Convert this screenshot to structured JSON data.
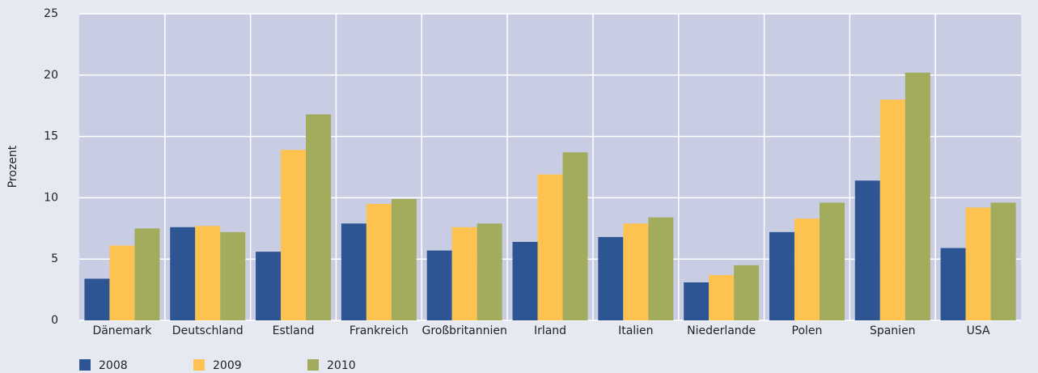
{
  "chart_data": {
    "type": "bar",
    "y_label": "Prozent",
    "categories": [
      "Dänemark",
      "Deutschland",
      "Estland",
      "Frankreich",
      "Großbritannien",
      "Irland",
      "Italien",
      "Niederlande",
      "Polen",
      "Spanien",
      "USA"
    ],
    "series": [
      {
        "name": "2008",
        "color": "#2e5593",
        "values": [
          3.4,
          7.6,
          5.6,
          7.9,
          5.7,
          6.4,
          6.8,
          3.1,
          7.2,
          11.4,
          5.9
        ]
      },
      {
        "name": "2009",
        "color": "#fdc24f",
        "values": [
          6.1,
          7.7,
          13.9,
          9.5,
          7.6,
          11.9,
          7.9,
          3.7,
          8.3,
          18.0,
          9.2
        ]
      },
      {
        "name": "2010",
        "color": "#a3ab5c",
        "values": [
          7.5,
          7.2,
          16.8,
          9.9,
          7.9,
          13.7,
          8.4,
          4.5,
          9.6,
          20.2,
          9.6
        ]
      }
    ],
    "ylim": [
      0,
      25
    ],
    "yticks": [
      0,
      5,
      10,
      15,
      20,
      25
    ],
    "grid": true,
    "legend": "bottom"
  }
}
